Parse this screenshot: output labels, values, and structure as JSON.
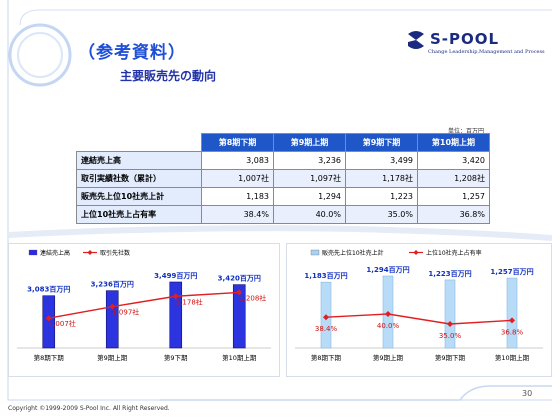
{
  "header": {
    "title": "（参考資料）",
    "subtitle": "主要販売先の動向"
  },
  "logo": {
    "name": "S-POOL",
    "tagline": "Change Leadership,Management and Process"
  },
  "table": {
    "unit": "単位：百万円",
    "columns": [
      "第8期下期",
      "第9期上期",
      "第9期下期",
      "第10期上期"
    ],
    "rows": [
      {
        "label": "連結売上高",
        "values": [
          "3,083",
          "3,236",
          "3,499",
          "3,420"
        ]
      },
      {
        "label": "取引実績社数（累計）",
        "values": [
          "1,007社",
          "1,097社",
          "1,178社",
          "1,208社"
        ]
      },
      {
        "label": "販売先上位10社売上計",
        "values": [
          "1,183",
          "1,294",
          "1,223",
          "1,257"
        ]
      },
      {
        "label": "上位10社売上占有率",
        "values": [
          "38.4%",
          "40.0%",
          "35.0%",
          "36.8%"
        ]
      }
    ]
  },
  "chart_data": [
    {
      "type": "bar",
      "categories": [
        "第8期下期",
        "第9期上期",
        "第9下期",
        "第10期上期"
      ],
      "legend": [
        "連結売上高",
        "取引先社数"
      ],
      "series": [
        {
          "name": "連結売上高",
          "type": "bar",
          "values": [
            3083,
            3236,
            3499,
            3420
          ],
          "labels": [
            "3,083百万円",
            "3,236百万円",
            "3,499百万円",
            "3,420百万円"
          ],
          "color": "#2a2ae6"
        },
        {
          "name": "取引先社数",
          "type": "line",
          "values": [
            1007,
            1097,
            1178,
            1208
          ],
          "labels": [
            "1,007社",
            "1,097社",
            "1,178社",
            "1,208社"
          ],
          "color": "#e02020"
        }
      ]
    },
    {
      "type": "bar",
      "categories": [
        "第8期下期",
        "第9期上期",
        "第9期下期",
        "第10期上期"
      ],
      "legend": [
        "販売先上位10社売上計",
        "上位10社売上占有率"
      ],
      "series": [
        {
          "name": "販売先上位10社売上計",
          "type": "bar",
          "values": [
            1183,
            1294,
            1223,
            1257
          ],
          "labels": [
            "1,183百万円",
            "1,294百万円",
            "1,223百万円",
            "1,257百万円"
          ],
          "color": "#a9d0f5"
        },
        {
          "name": "上位10社売上占有率",
          "type": "line",
          "values": [
            38.4,
            40.0,
            35.0,
            36.8
          ],
          "labels": [
            "38.4%",
            "40.0%",
            "35.0%",
            "36.8%"
          ],
          "color": "#e02020"
        }
      ]
    }
  ],
  "footer": {
    "copyright": "Copyright ©1999-2009 S-Pool Inc. All Right Reserved.",
    "page": "30"
  }
}
